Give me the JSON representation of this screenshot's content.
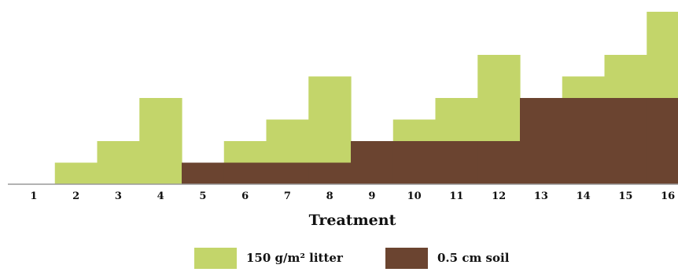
{
  "chart_data": {
    "type": "bar",
    "stacked": true,
    "categories": [
      "1",
      "2",
      "3",
      "4",
      "5",
      "6",
      "7",
      "8",
      "9",
      "10",
      "11",
      "12",
      "13",
      "14",
      "15",
      "16"
    ],
    "series": [
      {
        "name": "0.5 cm soil",
        "color": "#6b4430",
        "values": [
          0,
          0,
          0,
          0,
          1,
          1,
          1,
          1,
          2,
          2,
          2,
          2,
          4,
          4,
          4,
          4
        ]
      },
      {
        "name": "150 g/m² litter",
        "color": "#c3d56a",
        "values": [
          0,
          1,
          2,
          4,
          0,
          1,
          2,
          4,
          0,
          1,
          2,
          4,
          0,
          1,
          2,
          4
        ]
      }
    ],
    "xlabel": "Treatment",
    "ylabel": "",
    "ylim": [
      0,
      8
    ],
    "grid": false,
    "legend_position": "bottom"
  }
}
